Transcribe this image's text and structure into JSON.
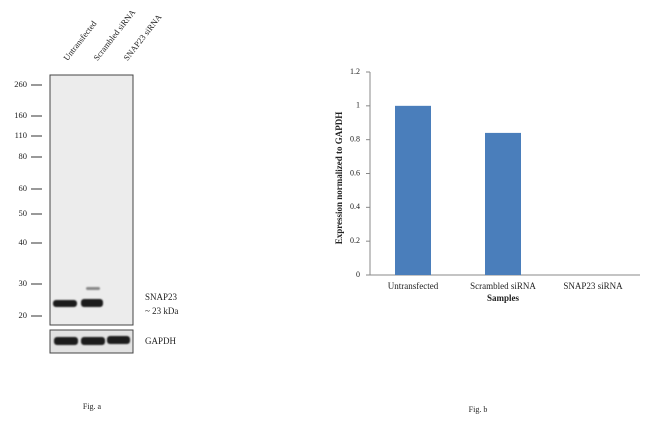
{
  "blot": {
    "lanes": [
      "Untransfected",
      "Scrambled siRNA",
      "SNAP23 siRNA"
    ],
    "markers": [
      "260",
      "160",
      "110",
      "80",
      "60",
      "50",
      "40",
      "30",
      "20"
    ],
    "band_label": "SNAP23",
    "band_size": "~ 23 kDa",
    "control_label": "GAPDH",
    "caption": "Fig. a"
  },
  "chart_data": {
    "type": "bar",
    "y_label": "Expression  normalized to GAPDH",
    "x_label": "Samples",
    "caption": "Fig. b",
    "categories": [
      "Untransfected",
      "Scrambled siRNA",
      "SNAP23 siRNA"
    ],
    "values": [
      1,
      0.84,
      0
    ],
    "color": "#4a7ebb",
    "ylim": [
      0,
      1.2
    ],
    "yticks": [
      0,
      0.2,
      0.4,
      0.6,
      0.8,
      1,
      1.2
    ]
  }
}
